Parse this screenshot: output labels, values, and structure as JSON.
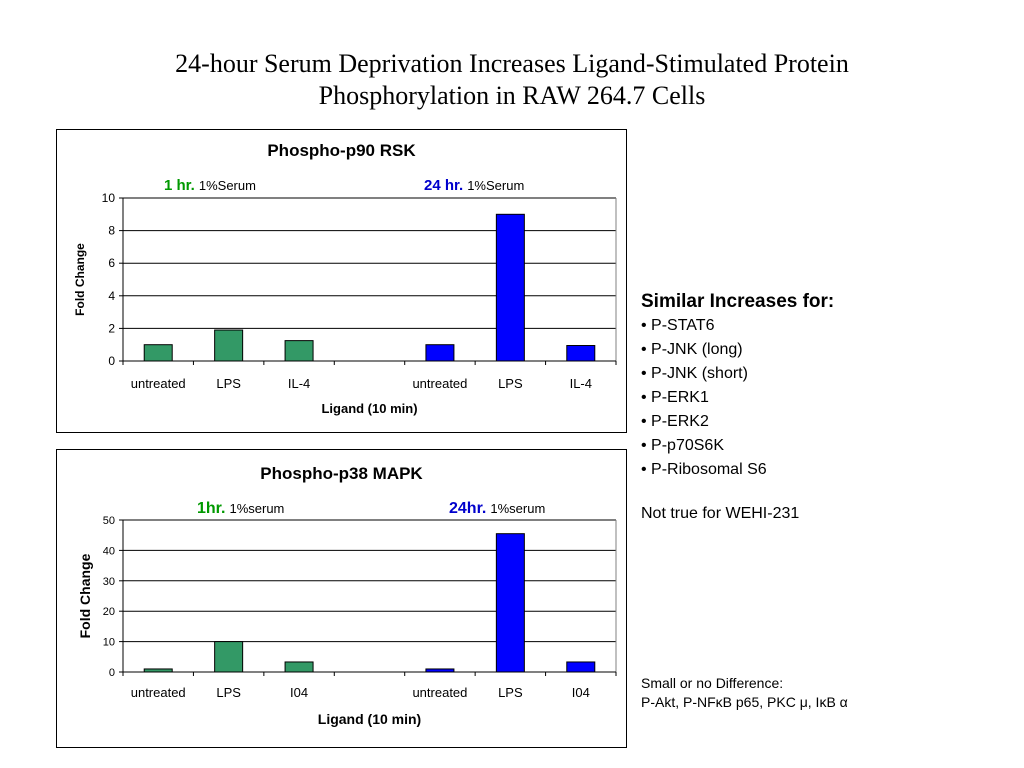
{
  "slide": {
    "title_line1": "24-hour Serum Deprivation Increases Ligand-Stimulated Protein",
    "title_line2": "Phosphorylation in RAW 264.7 Cells"
  },
  "colors": {
    "green": "#339966",
    "blue": "#0000ff",
    "green_text": "#009900",
    "blue_text": "#0000cc"
  },
  "side_panel": {
    "heading": "Similar Increases for:",
    "items": [
      "• P-STAT6",
      "• P-JNK (long)",
      "• P-JNK (short)",
      "• P-ERK1",
      "• P-ERK2",
      "• P-p70S6K",
      "• P-Ribosomal S6"
    ],
    "note": "Not true for WEHI-231",
    "small_heading": "Small or no Difference:",
    "small_items": "P-Akt, P-NFκB p65, PKC μ, IκB α"
  },
  "chart_data": [
    {
      "type": "bar",
      "title": "Phospho-p90 RSK",
      "xlabel": "Ligand (10 min)",
      "ylabel": "Fold Change",
      "ylim": [
        0,
        10
      ],
      "yticks": [
        0,
        2,
        4,
        6,
        8,
        10
      ],
      "grid": true,
      "categories": [
        "untreated",
        "LPS",
        "IL-4",
        "",
        "untreated",
        "LPS",
        "IL-4"
      ],
      "values": [
        1.0,
        1.9,
        1.25,
        null,
        1.0,
        9.0,
        0.95
      ],
      "bar_colors": [
        "green",
        "green",
        "green",
        null,
        "blue",
        "blue",
        "blue"
      ],
      "group_labels": [
        {
          "bold": "1 hr.",
          "rest": "1%Serum",
          "color": "green_text"
        },
        {
          "bold": "24 hr.",
          "rest": "1%Serum",
          "color": "blue_text"
        }
      ]
    },
    {
      "type": "bar",
      "title": "Phospho-p38 MAPK",
      "xlabel": "Ligand (10 min)",
      "ylabel": "Fold Change",
      "ylim": [
        0,
        50
      ],
      "yticks": [
        0,
        10,
        20,
        30,
        40,
        50
      ],
      "grid": true,
      "categories": [
        "untreated",
        "LPS",
        "I04",
        "",
        "untreated",
        "LPS",
        "I04"
      ],
      "values": [
        1.0,
        10.0,
        3.3,
        null,
        1.0,
        45.5,
        3.3
      ],
      "bar_colors": [
        "green",
        "green",
        "green",
        null,
        "blue",
        "blue",
        "blue"
      ],
      "group_labels": [
        {
          "bold": "1hr.",
          "rest": "1%serum",
          "color": "green_text"
        },
        {
          "bold": "24hr.",
          "rest": "1%serum",
          "color": "blue_text"
        }
      ]
    }
  ]
}
